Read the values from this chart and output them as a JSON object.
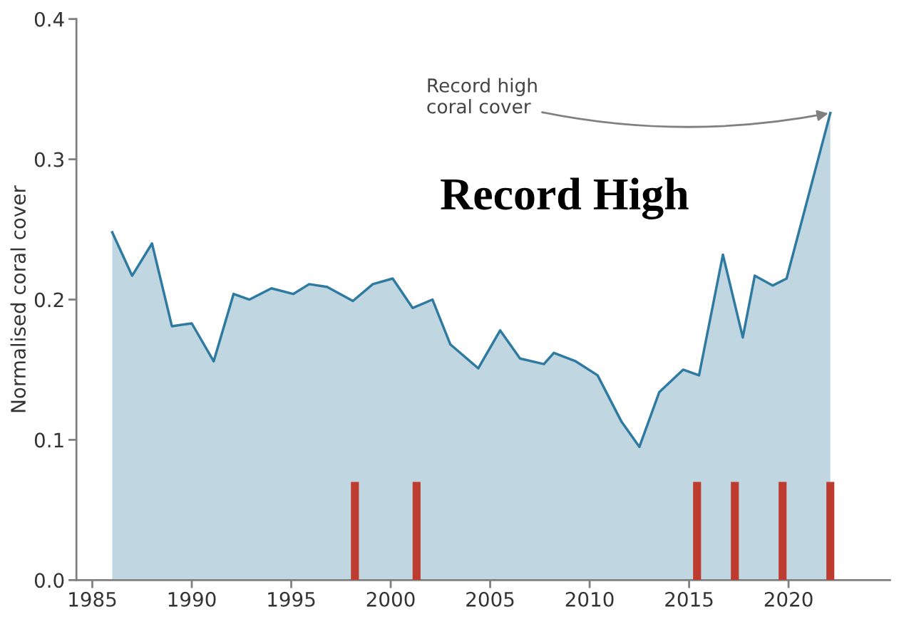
{
  "chart_data": {
    "type": "area",
    "ylabel": "Normalised coral cover",
    "xlim": [
      1984.2,
      2025.1
    ],
    "xticks": [
      1985,
      1990,
      1995,
      2000,
      2005,
      2010,
      2015,
      2020
    ],
    "ylim": [
      0,
      0.4
    ],
    "yticks": [
      {
        "value": 0,
        "label": "0.0"
      },
      {
        "value": 0.1,
        "label": "0.1"
      },
      {
        "value": 0.2,
        "label": "0.2"
      },
      {
        "value": 0.3,
        "label": "0.3"
      },
      {
        "value": 0.4,
        "label": "0.4"
      }
    ],
    "grid": false,
    "legend": false,
    "series": [
      {
        "color": "#2e7aa0",
        "x": [
          1986.0,
          1987.0,
          1988.0,
          1989.0,
          1990.0,
          1991.1,
          1992.1,
          1992.9,
          1994.0,
          1995.1,
          1995.9,
          1996.8,
          1998.1,
          1999.1,
          2000.1,
          2001.1,
          2002.1,
          2003.0,
          2004.4,
          2005.5,
          2006.5,
          2007.7,
          2008.2,
          2009.3,
          2010.4,
          2011.6,
          2012.5,
          2013.5,
          2014.7,
          2015.5,
          2016.7,
          2017.7,
          2018.3,
          2019.2,
          2019.9,
          2022.1
        ],
        "values": [
          0.248,
          0.217,
          0.24,
          0.181,
          0.183,
          0.156,
          0.204,
          0.2,
          0.208,
          0.204,
          0.211,
          0.209,
          0.199,
          0.211,
          0.215,
          0.194,
          0.2,
          0.168,
          0.151,
          0.178,
          0.158,
          0.154,
          0.162,
          0.156,
          0.146,
          0.113,
          0.095,
          0.134,
          0.15,
          0.146,
          0.232,
          0.173,
          0.217,
          0.21,
          0.215,
          0.333
        ]
      },
      {
        "type": "bar",
        "color": "#be3b2f",
        "x": [
          1998.2,
          2001.3,
          2015.4,
          2017.3,
          2019.7,
          2022.1
        ],
        "values": [
          0.07,
          0.07,
          0.07,
          0.07,
          0.07,
          0.07
        ]
      }
    ],
    "annotations": [
      {
        "text": "Record high\ncoral cover",
        "x": 2022.1,
        "y": 0.333
      },
      "Record High"
    ]
  }
}
